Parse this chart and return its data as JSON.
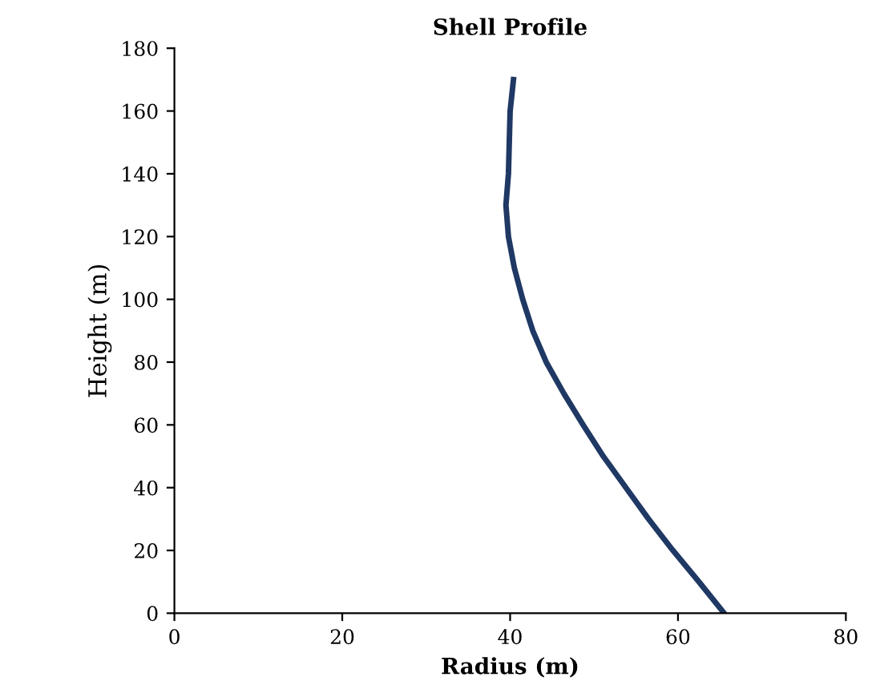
{
  "chart_data": {
    "type": "line",
    "title": "Shell Profile",
    "xlabel": "Radius (m)",
    "ylabel": "Height (m)",
    "series": [
      {
        "color": "#1f3864",
        "x": [
          65.5,
          62.5,
          59.4,
          56.5,
          53.8,
          51.1,
          48.7,
          46.4,
          44.3,
          42.7,
          41.5,
          40.5,
          39.8,
          39.5,
          39.8,
          39.9,
          40.0,
          40.4
        ],
        "values": [
          0,
          10,
          20,
          30,
          40,
          50,
          60,
          70,
          80,
          90,
          100,
          110,
          120,
          130,
          140,
          150,
          160,
          170
        ]
      }
    ],
    "xlim": [
      0,
      80
    ],
    "xticks": [
      0,
      20,
      40,
      60,
      80
    ],
    "ylim": [
      0,
      180
    ],
    "yticks": [
      0,
      20,
      40,
      60,
      80,
      100,
      120,
      140,
      160,
      180
    ],
    "grid": false,
    "legend": false,
    "marker": "none",
    "line_style": "solid"
  }
}
